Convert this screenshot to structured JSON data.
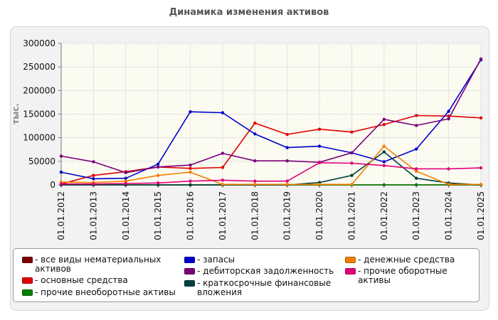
{
  "chart_data": {
    "type": "line",
    "title": "Динамика изменения активов",
    "ylabel": "тыс.",
    "xlabel": "",
    "ylim": [
      0,
      300000
    ],
    "yticks": [
      "0",
      "50000",
      "100000",
      "150000",
      "200000",
      "250000",
      "300000"
    ],
    "ytick_values": [
      0,
      50000,
      100000,
      150000,
      200000,
      250000,
      300000
    ],
    "categories": [
      "01.01.2012",
      "01.01.2013",
      "01.01.2014",
      "01.01.2015",
      "01.01.2016",
      "01.01.2017",
      "01.01.2018",
      "01.01.2019",
      "01.01.2020",
      "01.01.2021",
      "01.01.2022",
      "01.01.2023",
      "01.01.2024",
      "01.01.2025"
    ],
    "grid": true,
    "legend_position": "bottom",
    "series": [
      {
        "name": "- все виды нематериальных активов",
        "color": "#7b0000",
        "values": [
          0,
          0,
          0,
          0,
          0,
          0,
          0,
          0,
          0,
          0,
          0,
          0,
          0,
          0
        ]
      },
      {
        "name": "- основные средства",
        "color": "#e00000",
        "values": [
          2000,
          20000,
          28000,
          38000,
          35000,
          37000,
          131000,
          107000,
          118000,
          112000,
          128000,
          147000,
          146000,
          142000
        ]
      },
      {
        "name": "- прочие внеоборотные активы",
        "color": "#008000",
        "values": [
          0,
          0,
          0,
          0,
          0,
          0,
          0,
          0,
          0,
          0,
          0,
          0,
          0,
          0
        ]
      },
      {
        "name": "- запасы",
        "color": "#0000cc",
        "values": [
          27000,
          13000,
          14000,
          44000,
          155000,
          153000,
          108000,
          79000,
          82000,
          68000,
          49000,
          76000,
          156000,
          265000
        ]
      },
      {
        "name": "- дебиторская задолженность",
        "color": "#7a007a",
        "values": [
          61000,
          49000,
          26000,
          38000,
          42000,
          67000,
          51000,
          51000,
          48000,
          68000,
          139000,
          126000,
          140000,
          267000
        ]
      },
      {
        "name": "- краткосрочные финансовые вложения",
        "color": "#004040",
        "values": [
          0,
          0,
          0,
          0,
          0,
          0,
          0,
          0,
          5000,
          20000,
          70000,
          14000,
          4000,
          0
        ]
      },
      {
        "name": "- денежные средства",
        "color": "#f08000",
        "values": [
          6000,
          5000,
          8000,
          20000,
          27000,
          1000,
          1000,
          1000,
          1000,
          1000,
          82000,
          29000,
          1000,
          1000
        ]
      },
      {
        "name": "- прочие оборотные активы",
        "color": "#e0007a",
        "values": [
          2000,
          2000,
          3000,
          4000,
          8000,
          10000,
          8000,
          8000,
          47000,
          46000,
          41000,
          34000,
          34000,
          36000
        ]
      }
    ]
  }
}
